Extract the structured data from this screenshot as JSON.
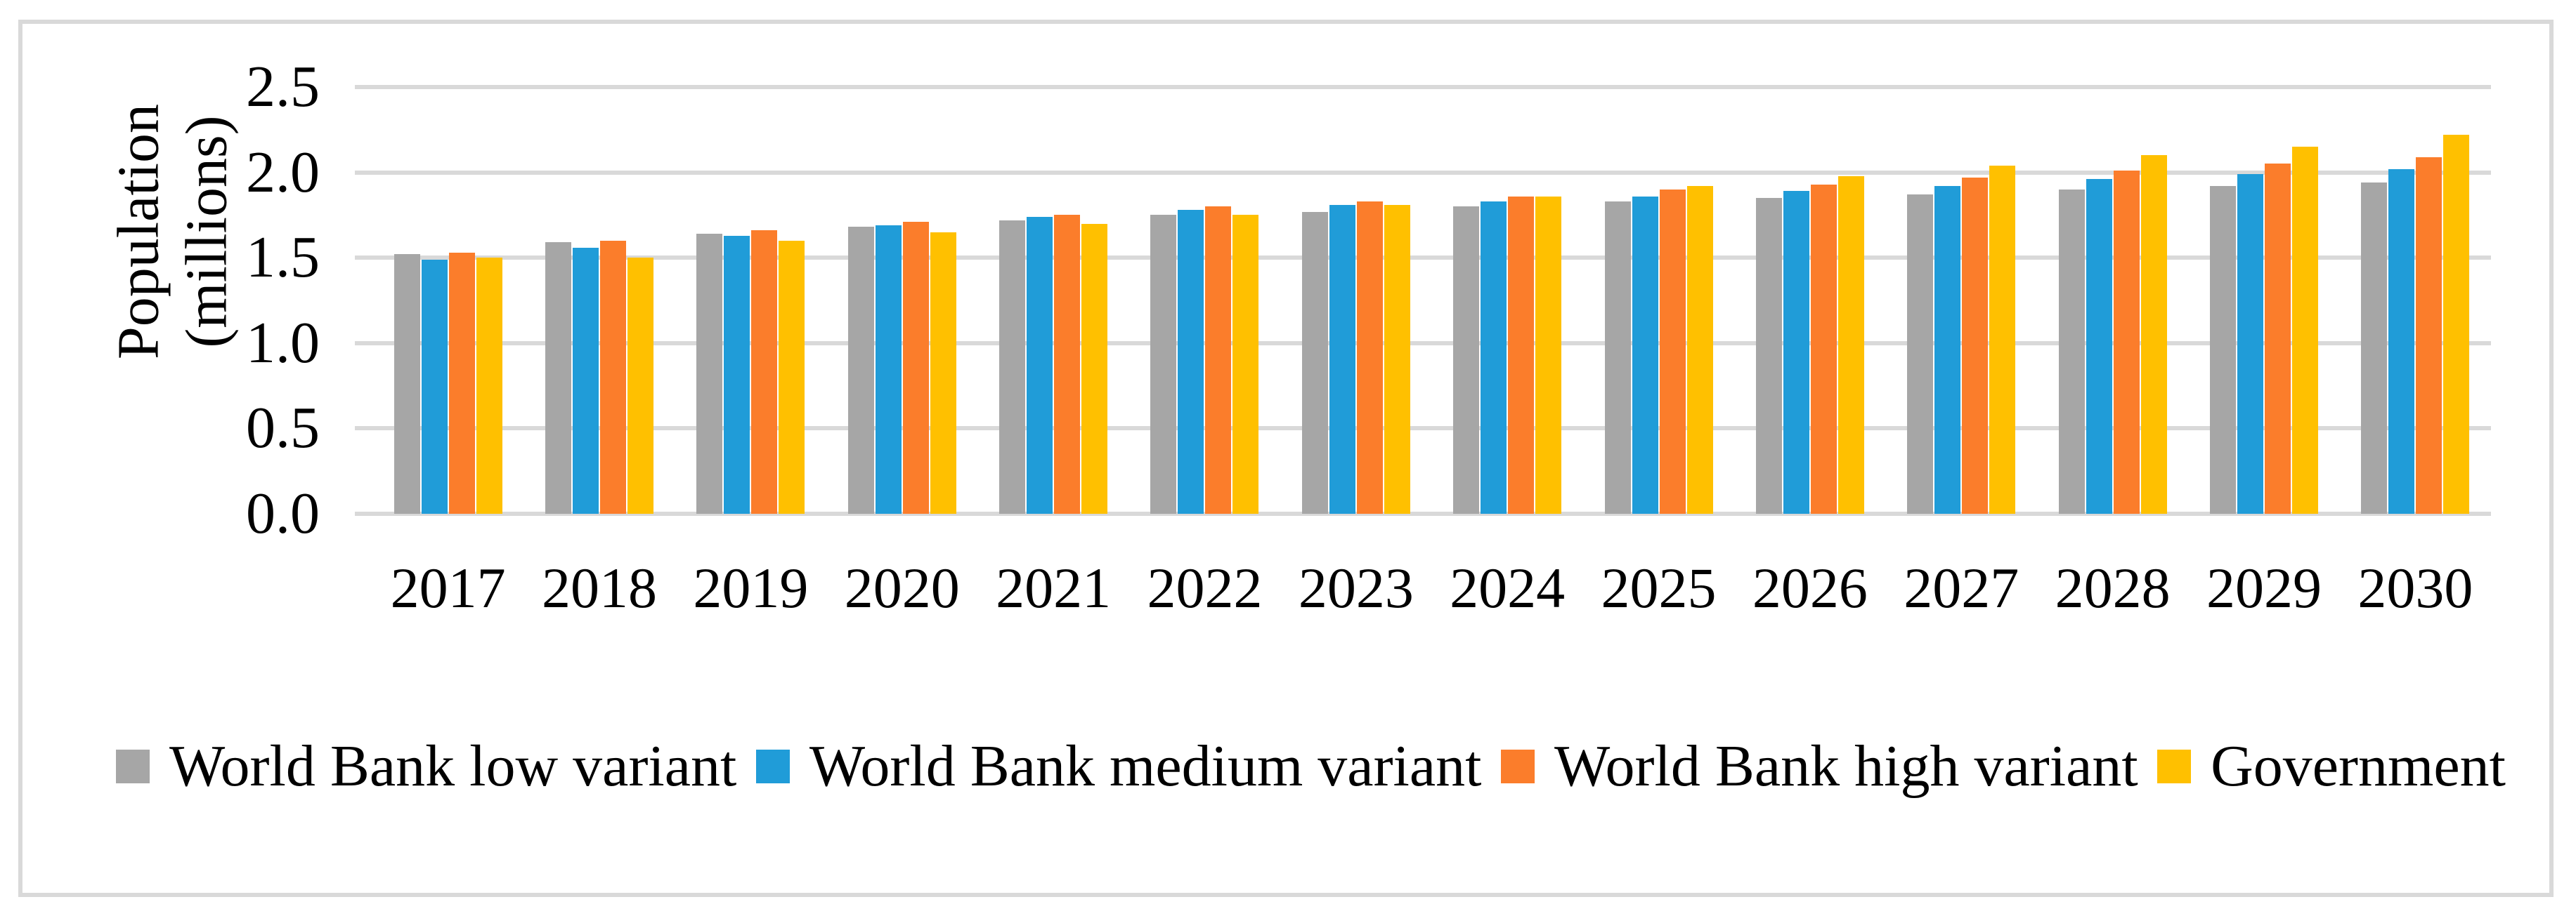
{
  "chart_data": {
    "type": "bar",
    "title": "",
    "xlabel": "",
    "ylabel": "Population (millions)",
    "ylabel_lines": [
      "Population",
      "(millions)"
    ],
    "categories": [
      "2017",
      "2018",
      "2019",
      "2020",
      "2021",
      "2022",
      "2023",
      "2024",
      "2025",
      "2026",
      "2027",
      "2028",
      "2029",
      "2030"
    ],
    "series": [
      {
        "name": "World Bank low variant",
        "color": "#A6A6A6",
        "values": [
          1.52,
          1.59,
          1.64,
          1.68,
          1.72,
          1.75,
          1.77,
          1.8,
          1.83,
          1.85,
          1.87,
          1.9,
          1.92,
          1.94
        ]
      },
      {
        "name": "World Bank medium variant",
        "color": "#209CD8",
        "values": [
          1.49,
          1.56,
          1.63,
          1.69,
          1.74,
          1.78,
          1.81,
          1.83,
          1.86,
          1.89,
          1.92,
          1.96,
          1.99,
          2.02
        ]
      },
      {
        "name": "World Bank high variant",
        "color": "#FB7D2B",
        "values": [
          1.53,
          1.6,
          1.66,
          1.71,
          1.75,
          1.8,
          1.83,
          1.86,
          1.9,
          1.93,
          1.97,
          2.01,
          2.05,
          2.09
        ]
      },
      {
        "name": "Government",
        "color": "#FFC000",
        "values": [
          1.5,
          1.5,
          1.6,
          1.65,
          1.7,
          1.75,
          1.81,
          1.86,
          1.92,
          1.98,
          2.04,
          2.1,
          2.15,
          2.22
        ]
      }
    ],
    "ylim": [
      0,
      2.5
    ],
    "yticks": [
      0.0,
      0.5,
      1.0,
      1.5,
      2.0,
      2.5
    ],
    "ytick_labels": [
      "0.0",
      "0.5",
      "1.0",
      "1.5",
      "2.0",
      "2.5"
    ],
    "grid": true,
    "legend_position": "bottom"
  },
  "colors": {
    "gridline": "#D9D9D9",
    "figure_border": "#D9D9D9",
    "text": "#000000",
    "background": "#FFFFFF"
  }
}
